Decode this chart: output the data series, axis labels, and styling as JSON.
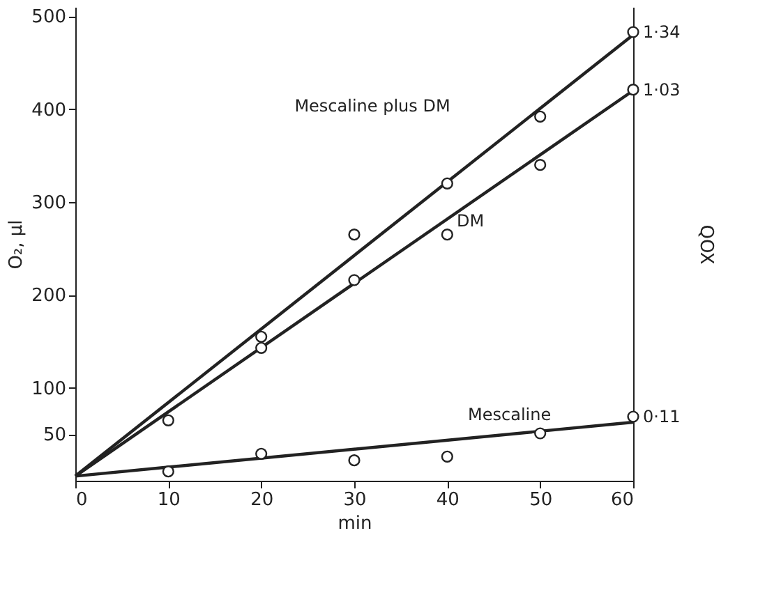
{
  "chart_data": {
    "type": "scatter",
    "xlabel": "min",
    "ylabel": "O₂,  μl",
    "y2label": "QOX",
    "xlim": [
      0,
      60
    ],
    "xticks": [
      0,
      10,
      20,
      30,
      40,
      50,
      60
    ],
    "ylim": [
      0,
      510
    ],
    "yticks": [
      50,
      100,
      200,
      300,
      400,
      500
    ],
    "marker": "circle",
    "series": [
      {
        "color": "#222222",
        "x": [
          20,
          30,
          40,
          50,
          60
        ],
        "values": [
          155,
          265,
          320,
          392,
          483
        ]
      },
      {
        "color": "#222222",
        "x": [
          10,
          20,
          30,
          40,
          50,
          60
        ],
        "values": [
          65,
          143,
          216,
          265,
          340,
          421
        ]
      },
      {
        "color": "#222222",
        "x": [
          10,
          20,
          30,
          40,
          50,
          60
        ],
        "values": [
          10,
          29,
          22,
          26,
          51,
          69
        ]
      },
      {
        "type": "line",
        "color": "#222222",
        "marker": "none",
        "line_style": "solid",
        "x": [
          0,
          60
        ],
        "values": [
          5,
          480
        ]
      },
      {
        "type": "line",
        "color": "#222222",
        "marker": "none",
        "line_style": "solid",
        "x": [
          0,
          60
        ],
        "values": [
          5,
          420
        ]
      },
      {
        "type": "line",
        "color": "#222222",
        "marker": "none",
        "line_style": "solid",
        "x": [
          0,
          60
        ],
        "values": [
          5,
          63
        ]
      }
    ],
    "annotations": [
      "Mescaline plus DM",
      {
        "text": "DM",
        "x": 42.5,
        "y": 299
      },
      {
        "text": "Mescaline",
        "x": 46.7,
        "y": 50
      },
      {
        "text": "1·34",
        "x": 60,
        "y": 483
      },
      {
        "text": "1·03",
        "x": 60,
        "y": 421
      },
      {
        "text": "0·11",
        "x": 60,
        "y": 69
      }
    ]
  }
}
